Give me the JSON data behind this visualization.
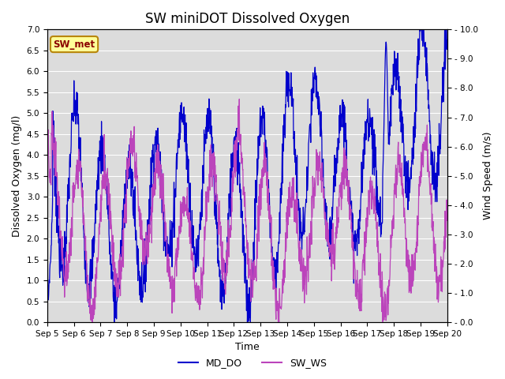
{
  "title": "SW miniDOT Dissolved Oxygen",
  "ylabel_left": "Dissolved Oxygen (mg/l)",
  "ylabel_right": "Wind Speed (m/s)",
  "xlabel": "Time",
  "ylim_left": [
    0.0,
    7.0
  ],
  "ylim_right": [
    0.0,
    10.0
  ],
  "yticks_left": [
    0.0,
    0.5,
    1.0,
    1.5,
    2.0,
    2.5,
    3.0,
    3.5,
    4.0,
    4.5,
    5.0,
    5.5,
    6.0,
    6.5,
    7.0
  ],
  "yticks_right": [
    0.0,
    1.0,
    2.0,
    3.0,
    4.0,
    5.0,
    6.0,
    7.0,
    8.0,
    9.0,
    10.0
  ],
  "ytick_labels_right": [
    "0.0",
    "1.0",
    "2.0",
    "3.0",
    "4.0",
    "5.0",
    "6.0",
    "7.0",
    "8.0",
    "9.0",
    "10.0"
  ],
  "xtick_labels": [
    "Sep 5",
    "Sep 6",
    "Sep 7",
    "Sep 8",
    "Sep 9",
    "Sep 10",
    "Sep 11",
    "Sep 12",
    "Sep 13",
    "Sep 14",
    "Sep 15",
    "Sep 16",
    "Sep 17",
    "Sep 18",
    "Sep 19",
    "Sep 20"
  ],
  "line_color_do": "#0000CC",
  "line_color_ws": "#BB44BB",
  "legend_labels": [
    "MD_DO",
    "SW_WS"
  ],
  "annotation_text": "SW_met",
  "annotation_text_color": "#8B0000",
  "annotation_box_facecolor": "#FFFF99",
  "annotation_box_edgecolor": "#B8860B",
  "bg_color": "#DCDCDC",
  "grid_color": "#FFFFFF",
  "title_fontsize": 12,
  "label_fontsize": 9,
  "tick_fontsize": 7.5,
  "linewidth": 0.9
}
